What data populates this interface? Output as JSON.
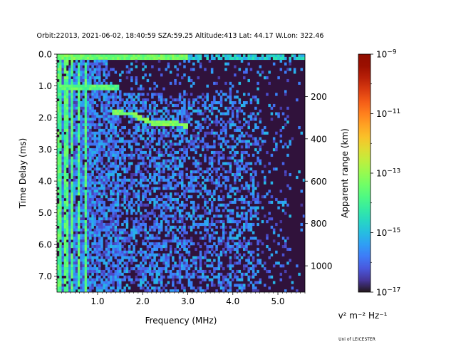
{
  "chart_data": {
    "type": "heatmap",
    "title": "Orbit:22013, 2021-06-02, 18:40:59 SZA:59.25 Altitude:413 Lat: 44.17 W.Lon: 322.46",
    "xlabel": "Frequency (MHz)",
    "ylabel": "Time Delay (ms)",
    "y2label": "Apparent range (km)",
    "colorbar_unit": "v² m⁻² Hz⁻¹",
    "footer": "Uni of LEICESTER",
    "xlim": [
      0.1,
      5.6
    ],
    "ylim": [
      7.5,
      0.0
    ],
    "xticks": [
      1.0,
      2.0,
      3.0,
      4.0,
      5.0
    ],
    "xtick_labels": [
      "1.0",
      "2.0",
      "3.0",
      "4.0",
      "5.0"
    ],
    "yticks": [
      0.0,
      1.0,
      2.0,
      3.0,
      4.0,
      5.0,
      6.0,
      7.0
    ],
    "ytick_labels": [
      "0.0",
      "1.0",
      "2.0",
      "3.0",
      "4.0",
      "5.0",
      "6.0",
      "7.0"
    ],
    "y2ticks": [
      200,
      400,
      600,
      800,
      1000
    ],
    "y2tick_labels": [
      "200",
      "400",
      "600",
      "800",
      "1000"
    ],
    "y2_km_per_ms": 149.9,
    "colorbar": {
      "scale": "log",
      "range": [
        1e-17,
        1e-09
      ],
      "ticks": [
        -17,
        -15,
        -13,
        -11,
        -9
      ],
      "tick_bases": [
        "10",
        "10",
        "10",
        "10",
        "10"
      ],
      "tick_exponents": [
        "−17",
        "−15",
        "−13",
        "−11",
        "−9"
      ],
      "colormap": "turbo"
    },
    "features": [
      {
        "kind": "local_plasma_lines",
        "x_mhz": [
          0.15,
          0.3,
          0.45,
          0.6,
          0.75
        ],
        "log_power": -13.5
      },
      {
        "kind": "surface_echo_top",
        "x_range": [
          0.1,
          5.6
        ],
        "y_ms": 0.1,
        "log_power": -13.5
      },
      {
        "kind": "ionospheric_trace",
        "x_mhz": [
          1.3,
          1.8,
          2.0,
          2.2,
          2.6,
          3.0
        ],
        "y_ms": [
          1.85,
          1.88,
          2.05,
          2.15,
          2.18,
          2.25
        ],
        "log_power": -13.3
      }
    ]
  }
}
